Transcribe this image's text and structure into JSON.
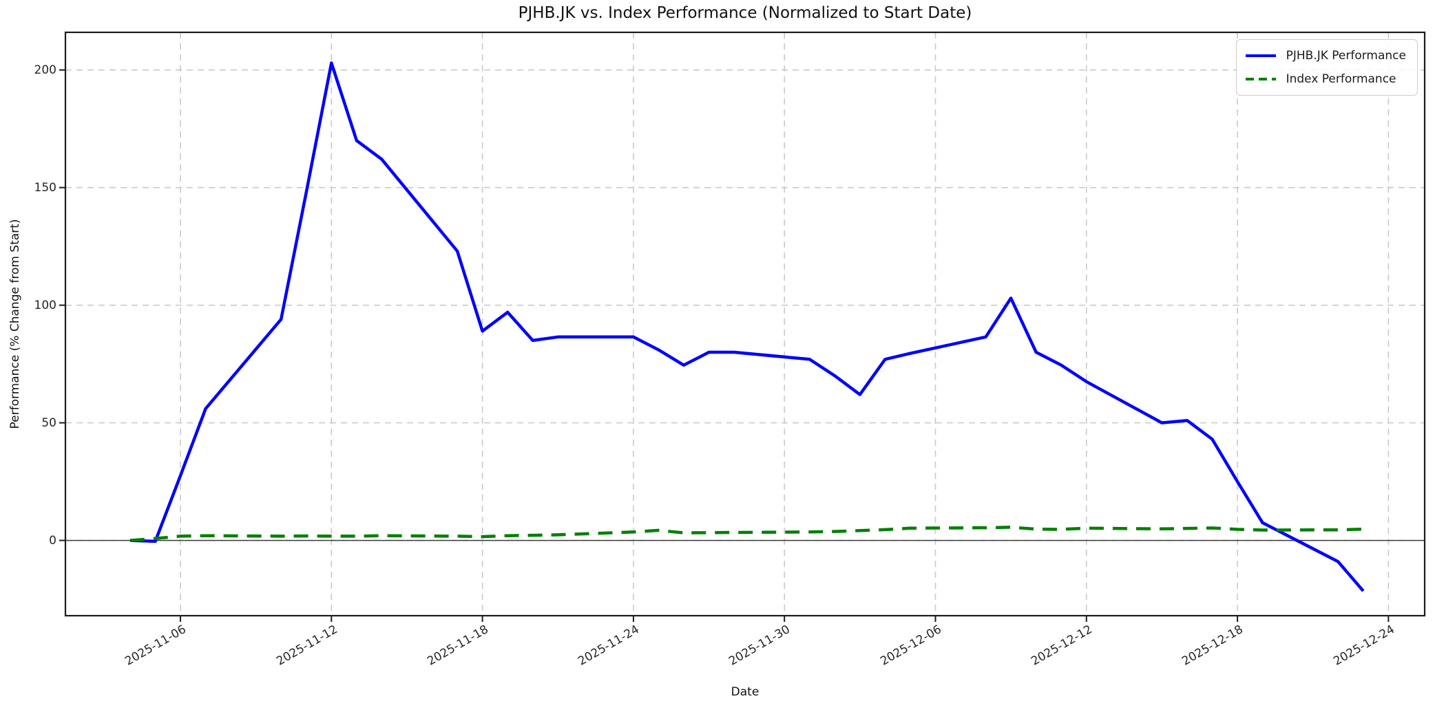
{
  "title": "PJHB.JK vs. Index Performance (Normalized to Start Date)",
  "colors": {
    "pjhb_line": "#0000ff",
    "index_line": "#008000",
    "grid": "#c9c9c9",
    "zero_line": "#3c3c3c",
    "spine": "#1a1a1a",
    "tick_text": "#262626"
  },
  "chart_data": {
    "type": "line",
    "title": "PJHB.JK vs. Index Performance (Normalized to Start Date)",
    "xlabel": "Date",
    "ylabel": "Performance (% Change from Start)",
    "grid": true,
    "grid_style": "dashed",
    "legend_position": "upper right",
    "zero_line": true,
    "ylim": [
      -32,
      216
    ],
    "y_ticks": [
      0,
      50,
      100,
      150,
      200
    ],
    "x_ticks": [
      "2025-11-06",
      "2025-11-12",
      "2025-11-18",
      "2025-11-24",
      "2025-11-30",
      "2025-12-06",
      "2025-12-12",
      "2025-12-18",
      "2025-12-24"
    ],
    "x": [
      "2025-11-04",
      "2025-11-05",
      "2025-11-06",
      "2025-11-07",
      "2025-11-10",
      "2025-11-11",
      "2025-11-12",
      "2025-11-13",
      "2025-11-14",
      "2025-11-17",
      "2025-11-18",
      "2025-11-19",
      "2025-11-20",
      "2025-11-21",
      "2025-11-24",
      "2025-11-25",
      "2025-11-26",
      "2025-11-27",
      "2025-11-28",
      "2025-12-01",
      "2025-12-02",
      "2025-12-03",
      "2025-12-04",
      "2025-12-05",
      "2025-12-08",
      "2025-12-09",
      "2025-12-10",
      "2025-12-11",
      "2025-12-12",
      "2025-12-15",
      "2025-12-16",
      "2025-12-17",
      "2025-12-18",
      "2025-12-19",
      "2025-12-22",
      "2025-12-23"
    ],
    "series": [
      {
        "id": "pjhb",
        "name": "PJHB.JK Performance",
        "color": "#0000ff",
        "linestyle": "solid",
        "values": [
          0,
          -0.4,
          27.5,
          56,
          94,
          148,
          203,
          170,
          162,
          123,
          89,
          97,
          85,
          86.5,
          86.5,
          81,
          74.5,
          80,
          80,
          77,
          70,
          62,
          77,
          79.5,
          86.5,
          103,
          80,
          74.5,
          67.5,
          50,
          51,
          43,
          25,
          7.5,
          -9,
          -21.5
        ]
      },
      {
        "id": "index",
        "name": "Index Performance",
        "color": "#008000",
        "linestyle": "dashed",
        "values": [
          0,
          0.8,
          1.8,
          2.0,
          1.8,
          1.9,
          1.8,
          1.8,
          2.0,
          1.8,
          1.6,
          2.0,
          2.2,
          2.4,
          3.6,
          4.3,
          3.2,
          3.3,
          3.4,
          3.6,
          3.8,
          4.2,
          4.6,
          5.2,
          5.4,
          5.6,
          4.8,
          4.7,
          5.2,
          4.9,
          5.1,
          5.3,
          4.7,
          4.4,
          4.5,
          4.8
        ]
      }
    ]
  }
}
